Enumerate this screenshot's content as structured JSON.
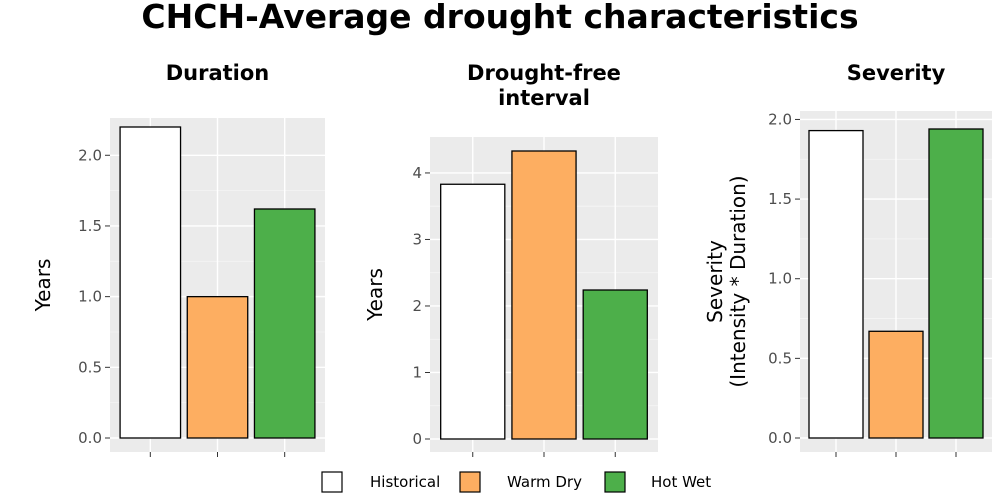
{
  "title": "CHCH-Average drought characteristics",
  "chart_data": [
    {
      "type": "bar",
      "title": "Duration",
      "xlabel": "",
      "ylabel": "Years",
      "categories": [
        "Historical",
        "Warm Dry",
        "Hot Wet"
      ],
      "values": [
        2.2,
        1.0,
        1.62
      ],
      "ylim": [
        0,
        2.2
      ],
      "yticks": [
        "0.0",
        "0.5",
        "1.0",
        "1.5",
        "2.0"
      ],
      "grid": true
    },
    {
      "type": "bar",
      "title": "Drought-free interval",
      "xlabel": "",
      "ylabel": "Years",
      "categories": [
        "Historical",
        "Warm Dry",
        "Hot Wet"
      ],
      "values": [
        3.83,
        4.33,
        2.24
      ],
      "ylim": [
        0,
        4.33
      ],
      "yticks": [
        "0",
        "1",
        "2",
        "3",
        "4"
      ],
      "grid": true
    },
    {
      "type": "bar",
      "title": "Severity",
      "xlabel": "",
      "ylabel": "Severity (Intensity * Duration)",
      "categories": [
        "Historical",
        "Warm Dry",
        "Hot Wet"
      ],
      "values": [
        1.93,
        0.67,
        1.94
      ],
      "ylim": [
        0,
        1.94
      ],
      "yticks": [
        "0.0",
        "0.5",
        "1.0",
        "1.5",
        "2.0"
      ],
      "grid": true
    }
  ],
  "legend": {
    "placement": "bottom",
    "items": [
      {
        "label": "Historical",
        "color": "#ffffff"
      },
      {
        "label": "Warm Dry",
        "color": "#fdae61"
      },
      {
        "label": "Hot Wet",
        "color": "#4daf4a"
      }
    ]
  }
}
